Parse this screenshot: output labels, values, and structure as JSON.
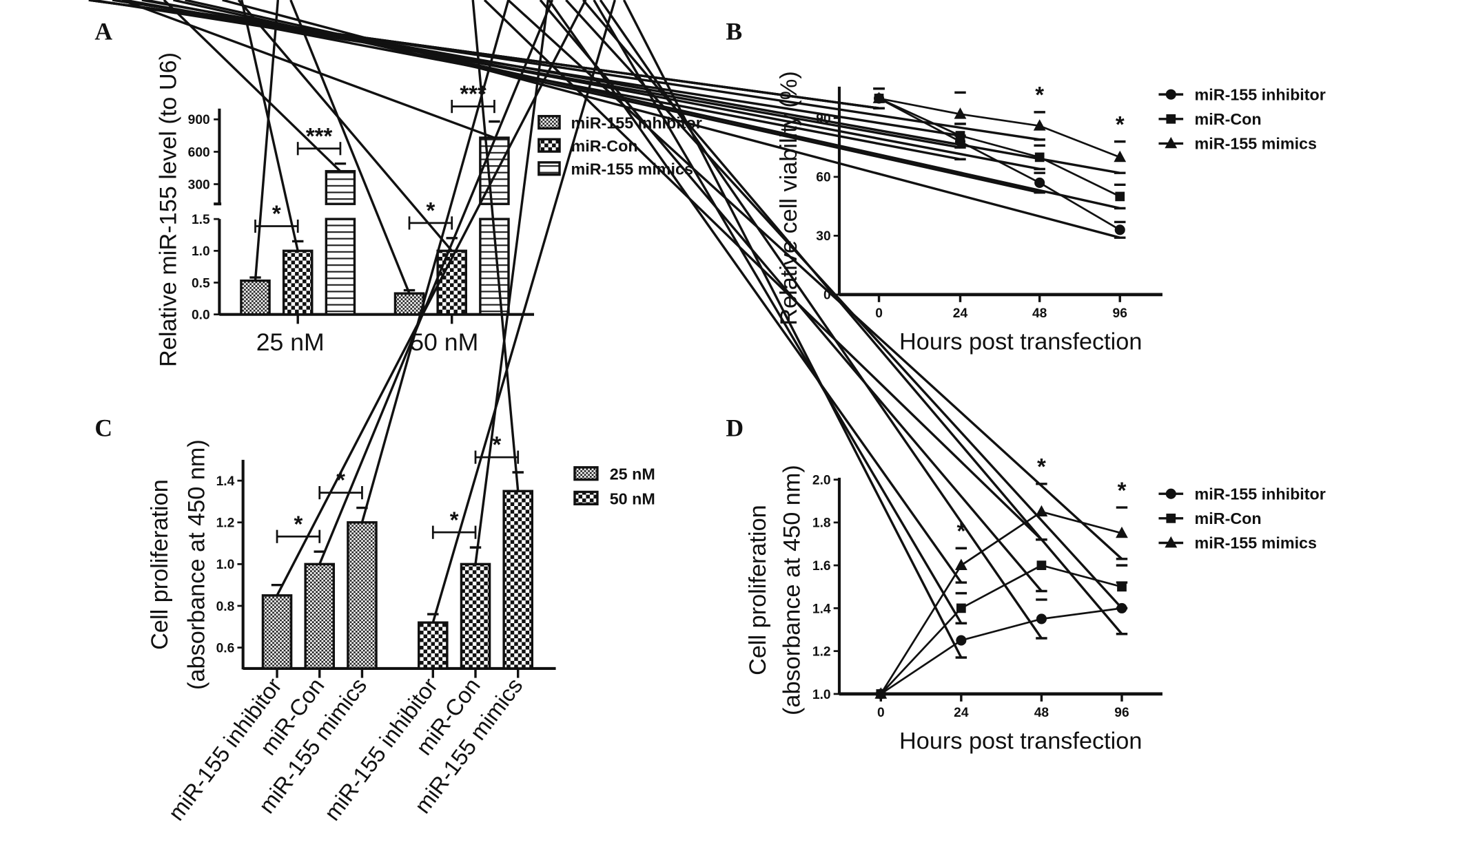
{
  "chart_data": [
    {
      "panel_label": "A",
      "type": "bar",
      "ylabel": "Relative miR-155 level (to U6)",
      "xlabel": "",
      "categories": [
        "25 nM",
        "50 nM"
      ],
      "y_axis_break": true,
      "ylim_lower": [
        0,
        1.5
      ],
      "ylim_upper": [
        117,
        1000
      ],
      "yticks_lower": [
        "0.0",
        "0.5",
        "1.0",
        "1.5"
      ],
      "yticks_upper": [
        "300",
        "600",
        "900"
      ],
      "series": [
        {
          "name": "miR-155 inhibitor",
          "values": [
            0.53,
            0.33
          ],
          "errors": [
            0.05,
            0.05
          ],
          "pattern": "fine-checker"
        },
        {
          "name": "miR-Con",
          "values": [
            1.0,
            1.0
          ],
          "errors": [
            0.15,
            0.2
          ],
          "pattern": "checker"
        },
        {
          "name": "miR-155 mimics",
          "values": [
            420,
            730
          ],
          "errors": [
            70,
            150
          ],
          "pattern": "horizontal-lines"
        }
      ],
      "significance": [
        {
          "category": 0,
          "between": [
            0,
            1
          ],
          "label": "*"
        },
        {
          "category": 0,
          "between": [
            1,
            2
          ],
          "label": "***"
        },
        {
          "category": 1,
          "between": [
            0,
            1
          ],
          "label": "*"
        },
        {
          "category": 1,
          "between": [
            1,
            2
          ],
          "label": "***"
        }
      ],
      "legend_position": "top-right",
      "grid": false
    },
    {
      "panel_label": "B",
      "type": "line",
      "ylabel": "Relative cell viability (%)",
      "xlabel": "Hours post transfection",
      "x": [
        "0",
        "24",
        "48",
        "96"
      ],
      "ylim": [
        0,
        105
      ],
      "yticks": [
        "0",
        "30",
        "60",
        "90"
      ],
      "series": [
        {
          "name": "miR-155 inhibitor",
          "marker": "circle",
          "values": [
            100,
            78,
            57,
            33
          ],
          "errors": [
            5,
            9,
            5,
            4
          ]
        },
        {
          "name": "miR-Con",
          "marker": "square",
          "values": [
            100,
            81,
            70,
            50
          ],
          "errors": [
            5,
            6,
            6,
            6
          ]
        },
        {
          "name": "miR-155 mimics",
          "marker": "triangle",
          "values": [
            100,
            92,
            86,
            70
          ],
          "errors": [
            5,
            11,
            7,
            8
          ]
        }
      ],
      "significance": [
        {
          "x_index": 2,
          "label": "*"
        },
        {
          "x_index": 3,
          "label": "*"
        }
      ],
      "legend_position": "right",
      "grid": false
    },
    {
      "panel_label": "C",
      "type": "bar",
      "ylabel": [
        "Cell proliferation",
        "(absorbance at 450 nm)"
      ],
      "xlabel": "",
      "categories": [
        "miR-155 inhibitor",
        "miR-Con",
        "miR-155 mimics"
      ],
      "ylim": [
        0.5,
        1.5
      ],
      "yticks": [
        "0.6",
        "0.8",
        "1.0",
        "1.2",
        "1.4"
      ],
      "series": [
        {
          "name": "25 nM",
          "values": [
            0.85,
            1.0,
            1.2
          ],
          "errors": [
            0.05,
            0.06,
            0.07
          ],
          "pattern": "fine-checker"
        },
        {
          "name": "50 nM",
          "values": [
            0.72,
            1.0,
            1.35
          ],
          "errors": [
            0.04,
            0.08,
            0.09
          ],
          "pattern": "checker"
        }
      ],
      "significance": [
        {
          "series": 0,
          "between": [
            0,
            1
          ],
          "label": "*"
        },
        {
          "series": 0,
          "between": [
            1,
            2
          ],
          "label": "*"
        },
        {
          "series": 1,
          "between": [
            0,
            1
          ],
          "label": "*"
        },
        {
          "series": 1,
          "between": [
            1,
            2
          ],
          "label": "*"
        }
      ],
      "legend_position": "top-right",
      "grid": false
    },
    {
      "panel_label": "D",
      "type": "line",
      "ylabel": [
        "Cell proliferation",
        "(absorbance at 450 nm)"
      ],
      "xlabel": "Hours post transfection",
      "x": [
        "0",
        "24",
        "48",
        "96"
      ],
      "ylim": [
        1.0,
        2.0
      ],
      "yticks": [
        "1.0",
        "1.2",
        "1.4",
        "1.6",
        "1.8",
        "2.0"
      ],
      "series": [
        {
          "name": "miR-155 inhibitor",
          "marker": "circle",
          "values": [
            1.0,
            1.25,
            1.35,
            1.4
          ],
          "errors": [
            0,
            0.08,
            0.09,
            0.12
          ]
        },
        {
          "name": "miR-Con",
          "marker": "square",
          "values": [
            1.0,
            1.4,
            1.6,
            1.5
          ],
          "errors": [
            0,
            0.07,
            0.12,
            0.1
          ]
        },
        {
          "name": "miR-155 mimics",
          "marker": "triangle",
          "values": [
            1.0,
            1.6,
            1.85,
            1.75
          ],
          "errors": [
            0,
            0.08,
            0.13,
            0.12
          ]
        }
      ],
      "significance": [
        {
          "x_index": 1,
          "label": "*"
        },
        {
          "x_index": 2,
          "label": "*"
        },
        {
          "x_index": 3,
          "label": "*"
        }
      ],
      "legend_position": "right",
      "grid": false
    }
  ]
}
